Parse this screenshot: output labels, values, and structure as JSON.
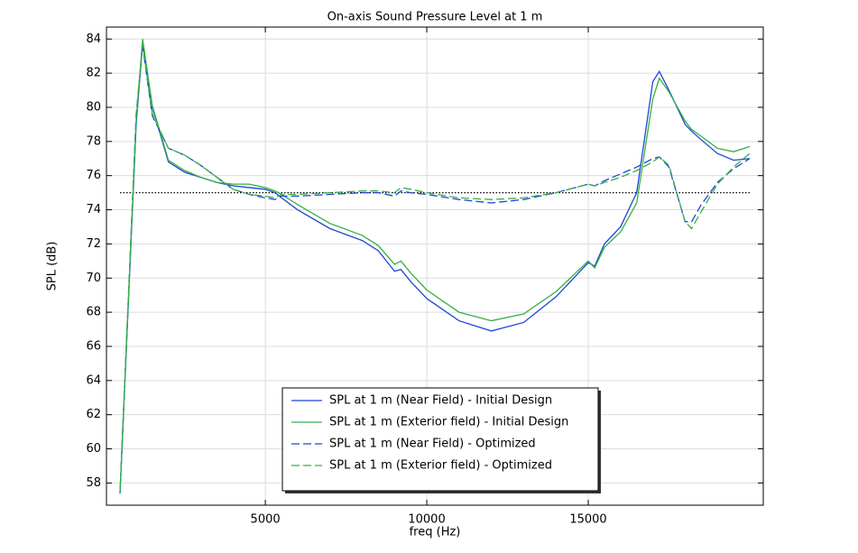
{
  "chart_data": {
    "type": "line",
    "title": "On-axis Sound Pressure Level at 1 m",
    "xlabel": "freq (Hz)",
    "ylabel": "SPL (dB)",
    "x": [
      500,
      1000,
      1200,
      1500,
      2000,
      2500,
      3000,
      3500,
      4000,
      4500,
      5000,
      5300,
      5500,
      6000,
      7000,
      8000,
      8500,
      9000,
      9200,
      9500,
      10000,
      11000,
      12000,
      13000,
      14000,
      15000,
      15200,
      15500,
      16000,
      16500,
      17000,
      17200,
      17500,
      18000,
      18200,
      18500,
      19000,
      19500,
      20000
    ],
    "series": [
      {
        "name": "SPL at 1 m (Near Field) - Initial Design",
        "color": "#1f45d6",
        "linestyle": "solid",
        "values": [
          57.4,
          79,
          83.8,
          80,
          76.8,
          76.2,
          75.9,
          75.6,
          75.4,
          75.3,
          75.2,
          75.0,
          74.7,
          74.0,
          72.9,
          72.2,
          71.6,
          70.4,
          70.5,
          69.8,
          68.8,
          67.5,
          66.9,
          67.4,
          68.9,
          70.9,
          70.7,
          72.0,
          73.0,
          75.0,
          81.5,
          82.1,
          81.0,
          79.0,
          78.6,
          78.1,
          77.3,
          76.9,
          77.0
        ]
      },
      {
        "name": "SPL at 1 m (Exterior field) - Initial Design",
        "color": "#35b044",
        "linestyle": "solid",
        "values": [
          57.4,
          79.2,
          84.0,
          80.1,
          76.9,
          76.3,
          75.9,
          75.6,
          75.5,
          75.5,
          75.3,
          75.1,
          74.9,
          74.3,
          73.2,
          72.5,
          71.9,
          70.8,
          71.0,
          70.3,
          69.3,
          68.0,
          67.5,
          67.9,
          69.2,
          71.0,
          70.6,
          71.8,
          72.7,
          74.4,
          80.5,
          81.7,
          80.9,
          79.2,
          78.7,
          78.3,
          77.6,
          77.4,
          77.7
        ]
      },
      {
        "name": "SPL at 1 m (Near Field) - Optimized",
        "color": "#1f45d6",
        "linestyle": "dashed",
        "values": [
          57.4,
          79.5,
          83.6,
          79.5,
          77.6,
          77.2,
          76.6,
          75.9,
          75.2,
          74.9,
          74.7,
          74.6,
          74.8,
          74.8,
          74.9,
          75.0,
          75.0,
          74.8,
          75.1,
          75.0,
          74.9,
          74.6,
          74.4,
          74.6,
          75.0,
          75.5,
          75.4,
          75.7,
          76.1,
          76.5,
          77.0,
          77.1,
          76.5,
          73.3,
          73.3,
          74.3,
          75.6,
          76.4,
          77.0
        ]
      },
      {
        "name": "SPL at 1 m (Exterior field) - Optimized",
        "color": "#35b044",
        "linestyle": "dashed",
        "values": [
          57.4,
          79.6,
          83.7,
          79.6,
          77.6,
          77.2,
          76.6,
          75.9,
          75.2,
          74.9,
          74.8,
          74.7,
          74.9,
          74.9,
          75.0,
          75.1,
          75.1,
          75.0,
          75.3,
          75.2,
          75.0,
          74.7,
          74.6,
          74.7,
          75.0,
          75.5,
          75.4,
          75.6,
          75.9,
          76.3,
          76.8,
          77.1,
          76.6,
          73.3,
          72.9,
          73.9,
          75.5,
          76.5,
          77.3
        ]
      }
    ],
    "reference_line": 75,
    "xlim": [
      80,
      20420
    ],
    "xticks": [
      5000,
      10000,
      15000
    ],
    "ylim": [
      56.7,
      84.7
    ],
    "yticks": [
      58,
      60,
      62,
      64,
      66,
      68,
      70,
      72,
      74,
      76,
      78,
      80,
      82,
      84
    ],
    "grid": true,
    "legend": "lower center"
  }
}
